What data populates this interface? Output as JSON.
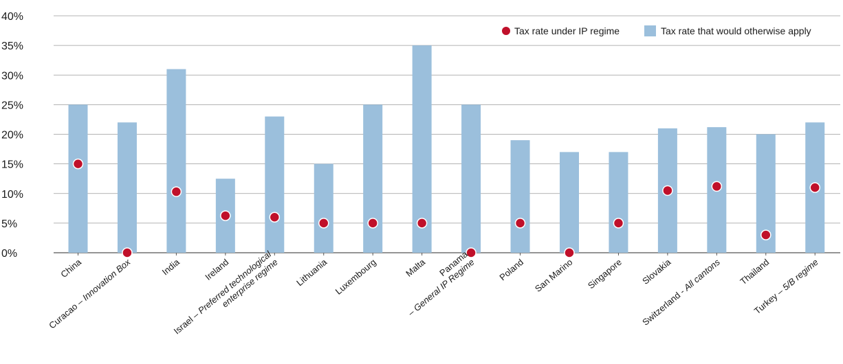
{
  "chart_data": {
    "type": "bar",
    "title": "",
    "xlabel": "",
    "ylabel": "",
    "ylim": [
      0,
      40
    ],
    "y_ticks": [
      "0%",
      "5%",
      "10%",
      "15%",
      "20%",
      "25%",
      "30%",
      "35%",
      "40%"
    ],
    "grid": true,
    "legend_position": "top-right",
    "categories": [
      {
        "lines": [
          [
            {
              "t": "China",
              "i": false
            }
          ]
        ]
      },
      {
        "lines": [
          [
            {
              "t": "Curacao – ",
              "i": false
            },
            {
              "t": "Innovation Box",
              "i": true
            }
          ]
        ]
      },
      {
        "lines": [
          [
            {
              "t": "India",
              "i": false
            }
          ]
        ]
      },
      {
        "lines": [
          [
            {
              "t": "Ireland",
              "i": false
            }
          ]
        ]
      },
      {
        "lines": [
          [
            {
              "t": "Israel – ",
              "i": false
            },
            {
              "t": "Preferred technological",
              "i": true
            }
          ],
          [
            {
              "t": "enterprise regime",
              "i": true
            }
          ]
        ]
      },
      {
        "lines": [
          [
            {
              "t": "Lithuania",
              "i": false
            }
          ]
        ]
      },
      {
        "lines": [
          [
            {
              "t": "Luxembourg",
              "i": false
            }
          ]
        ]
      },
      {
        "lines": [
          [
            {
              "t": "Malta",
              "i": false
            }
          ]
        ]
      },
      {
        "lines": [
          [
            {
              "t": "Panama",
              "i": false
            }
          ],
          [
            {
              "t": "– ",
              "i": false
            },
            {
              "t": "General IP Regime",
              "i": true
            }
          ]
        ]
      },
      {
        "lines": [
          [
            {
              "t": "Poland",
              "i": false
            }
          ]
        ]
      },
      {
        "lines": [
          [
            {
              "t": "San Marino",
              "i": false
            }
          ]
        ]
      },
      {
        "lines": [
          [
            {
              "t": "Singapore",
              "i": false
            }
          ]
        ]
      },
      {
        "lines": [
          [
            {
              "t": "Slovakia",
              "i": false
            }
          ]
        ]
      },
      {
        "lines": [
          [
            {
              "t": "Switzerland - ",
              "i": false
            },
            {
              "t": "All cantons",
              "i": true
            }
          ]
        ]
      },
      {
        "lines": [
          [
            {
              "t": "Thailand",
              "i": false
            }
          ]
        ]
      },
      {
        "lines": [
          [
            {
              "t": "Turkey – ",
              "i": false
            },
            {
              "t": "5/B regime",
              "i": true
            }
          ]
        ]
      }
    ],
    "series": [
      {
        "name": "Tax rate that would otherwise apply",
        "kind": "bar",
        "color": "#9bbfdc",
        "values": [
          25,
          22,
          31,
          12.5,
          23,
          15,
          25,
          35,
          25,
          19,
          17,
          17,
          21,
          21.2,
          20,
          22
        ]
      },
      {
        "name": "Tax rate under IP regime",
        "kind": "dot",
        "color": "#c0102a",
        "values": [
          15,
          0,
          10.3,
          6.25,
          6,
          5,
          5,
          5,
          0,
          5,
          0,
          5,
          10.5,
          11.2,
          3,
          11
        ]
      }
    ]
  }
}
